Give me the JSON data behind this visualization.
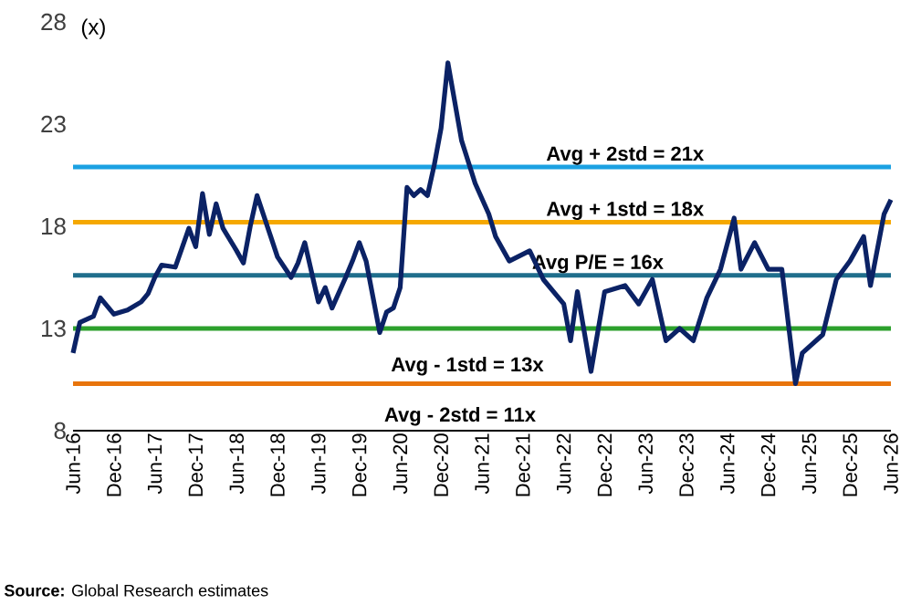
{
  "chart_data": {
    "type": "line",
    "x": [
      "2016-06",
      "2016-07",
      "2016-09",
      "2016-10",
      "2016-12",
      "2017-02",
      "2017-04",
      "2017-05",
      "2017-06",
      "2017-07",
      "2017-09",
      "2017-11",
      "2017-12",
      "2018-01",
      "2018-02",
      "2018-03",
      "2018-04",
      "2018-06",
      "2018-07",
      "2018-08",
      "2018-09",
      "2018-11",
      "2018-12",
      "2019-02",
      "2019-03",
      "2019-04",
      "2019-06",
      "2019-07",
      "2019-08",
      "2019-10",
      "2019-11",
      "2019-12",
      "2020-01",
      "2020-03",
      "2020-04",
      "2020-05",
      "2020-06",
      "2020-07",
      "2020-08",
      "2020-09",
      "2020-10",
      "2020-11",
      "2020-12",
      "2021-01",
      "2021-03",
      "2021-05",
      "2021-07",
      "2021-08",
      "2021-10",
      "2022-01",
      "2022-03",
      "2022-06",
      "2022-07",
      "2022-08",
      "2022-10",
      "2022-12",
      "2023-03",
      "2023-05",
      "2023-07",
      "2023-09",
      "2023-11",
      "2024-01",
      "2024-03",
      "2024-05",
      "2024-07",
      "2024-08",
      "2024-10",
      "2024-12",
      "2025-02",
      "2025-04",
      "2025-05",
      "2025-08",
      "2025-10",
      "2025-12",
      "2026-02",
      "2026-03",
      "2026-05",
      "2026-06"
    ],
    "series": [
      {
        "color": "#0b2265",
        "values": [
          11.8,
          13.3,
          13.6,
          14.5,
          13.7,
          13.9,
          14.3,
          14.7,
          15.5,
          16.1,
          16.0,
          17.9,
          17.0,
          19.6,
          17.6,
          19.1,
          17.9,
          16.8,
          16.2,
          18.0,
          19.5,
          17.5,
          16.5,
          15.5,
          16.2,
          17.2,
          14.3,
          15.0,
          14.0,
          15.5,
          16.3,
          17.2,
          16.3,
          12.8,
          13.8,
          14.0,
          15.0,
          19.9,
          19.5,
          19.8,
          19.5,
          21.0,
          22.8,
          26.0,
          22.2,
          20.1,
          18.6,
          17.5,
          16.3,
          16.8,
          15.4,
          14.2,
          12.4,
          14.8,
          10.9,
          14.8,
          15.1,
          14.2,
          15.4,
          12.4,
          13.0,
          12.4,
          14.5,
          15.9,
          18.4,
          15.9,
          17.2,
          15.9,
          15.9,
          10.3,
          11.8,
          12.7,
          15.4,
          16.3,
          17.5,
          15.1,
          18.6,
          19.3
        ]
      }
    ],
    "xlim": [
      "2016-06",
      "2026-06"
    ],
    "xticks": [
      {
        "value": "2016-06",
        "label": "Jun-16"
      },
      {
        "value": "2016-12",
        "label": "Dec-16"
      },
      {
        "value": "2017-06",
        "label": "Jun-17"
      },
      {
        "value": "2017-12",
        "label": "Dec-17"
      },
      {
        "value": "2018-06",
        "label": "Jun-18"
      },
      {
        "value": "2018-12",
        "label": "Dec-18"
      },
      {
        "value": "2019-06",
        "label": "Jun-19"
      },
      {
        "value": "2019-12",
        "label": "Dec-19"
      },
      {
        "value": "2020-06",
        "label": "Jun-20"
      },
      {
        "value": "2020-12",
        "label": "Dec-20"
      },
      {
        "value": "2021-06",
        "label": "Jun-21"
      },
      {
        "value": "2021-12",
        "label": "Dec-21"
      },
      {
        "value": "2022-06",
        "label": "Jun-22"
      },
      {
        "value": "2022-12",
        "label": "Dec-22"
      },
      {
        "value": "2023-06",
        "label": "Jun-23"
      },
      {
        "value": "2023-12",
        "label": "Dec-23"
      },
      {
        "value": "2024-06",
        "label": "Jun-24"
      },
      {
        "value": "2024-12",
        "label": "Dec-24"
      },
      {
        "value": "2025-06",
        "label": "Jun-25"
      },
      {
        "value": "2025-12",
        "label": "Dec-25"
      },
      {
        "value": "2026-06",
        "label": "Jun-26"
      }
    ],
    "ylim": [
      8,
      28
    ],
    "yticks": [
      8,
      13,
      18,
      23,
      28
    ],
    "ref_lines": [
      {
        "axis": "y",
        "value": 20.9,
        "label": "Avg + 2std = 21x",
        "color": "#1ba1e2"
      },
      {
        "axis": "y",
        "value": 18.2,
        "label": "Avg + 1std = 18x",
        "color": "#f5a800"
      },
      {
        "axis": "y",
        "value": 15.6,
        "label": "Avg P/E = 16x",
        "color": "#1f6e8c"
      },
      {
        "axis": "y",
        "value": 13.0,
        "color": "#2ca02c"
      },
      {
        "axis": "y",
        "value": 10.3,
        "color": "#e8740c"
      }
    ],
    "annotations": [
      "(x)",
      "Avg - 1std = 13x",
      "Avg - 2std = 11x",
      "**Source:** Global Research estimates"
    ],
    "grid": false,
    "marker": "none",
    "line_style": "solid"
  }
}
